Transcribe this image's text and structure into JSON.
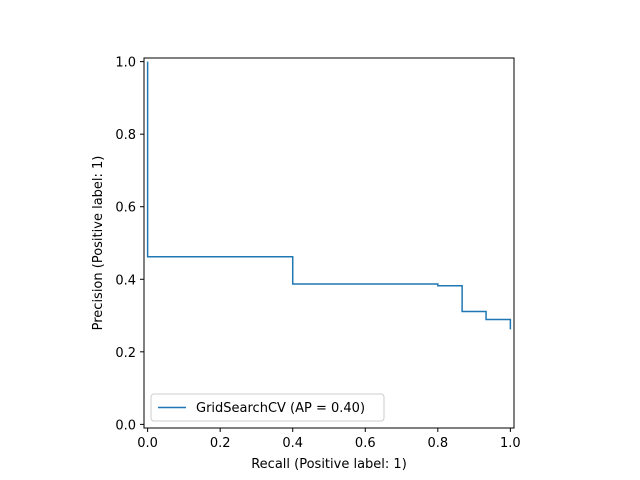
{
  "chart_data": {
    "type": "line",
    "xlabel": "Recall (Positive label: 1)",
    "ylabel": "Precision (Positive label: 1)",
    "xlim": [
      -0.01,
      1.01
    ],
    "ylim": [
      -0.01,
      1.01
    ],
    "xticks": [
      "0.0",
      "0.2",
      "0.4",
      "0.6",
      "0.8",
      "1.0"
    ],
    "yticks": [
      "0.0",
      "0.2",
      "0.4",
      "0.6",
      "0.8",
      "1.0"
    ],
    "grid": false,
    "legend_position": "lower-left",
    "drawstyle": "steps-post",
    "series": [
      {
        "name": "GridSearchCV (AP = 0.40)",
        "color": "#1f77b4",
        "x": [
          1.0,
          1.0,
          0.933,
          0.933,
          0.867,
          0.867,
          0.8,
          0.8,
          0.4,
          0.4,
          0.0,
          0.0
        ],
        "y": [
          0.262,
          0.289,
          0.289,
          0.311,
          0.311,
          0.382,
          0.382,
          0.387,
          0.387,
          0.462,
          0.462,
          1.0
        ]
      }
    ]
  }
}
